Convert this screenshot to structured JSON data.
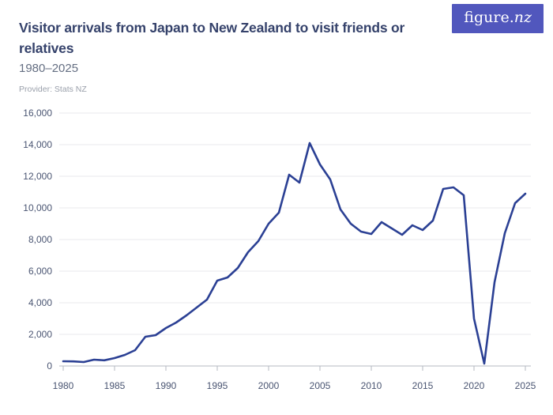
{
  "header": {
    "logo": {
      "main": "figure.",
      "suffix": "nz"
    },
    "title": "Visitor arrivals from Japan to New Zealand to visit friends or relatives",
    "subtitle": "1980–2025",
    "provider": "Provider: Stats NZ"
  },
  "colors": {
    "title_text": "#35426b",
    "subtitle_text": "#646e82",
    "provider_text": "#9aa0ab",
    "logo_background": "#5157bd",
    "logo_text": "#ffffff",
    "line": "#2b4094",
    "gridline": "#e8e8ec",
    "axis": "#b4b8c2",
    "tick_label": "#4a5572"
  },
  "chart_data": {
    "type": "line",
    "title": "Visitor arrivals from Japan to New Zealand to visit friends or relatives",
    "xlabel": "",
    "ylabel": "",
    "xlim": [
      1980,
      2025
    ],
    "ylim": [
      0,
      16000
    ],
    "grid": true,
    "legend": false,
    "x": [
      1980,
      1981,
      1982,
      1983,
      1984,
      1985,
      1986,
      1987,
      1988,
      1989,
      1990,
      1991,
      1992,
      1993,
      1994,
      1995,
      1996,
      1997,
      1998,
      1999,
      2000,
      2001,
      2002,
      2003,
      2004,
      2005,
      2006,
      2007,
      2008,
      2009,
      2010,
      2011,
      2012,
      2013,
      2014,
      2015,
      2016,
      2017,
      2018,
      2019,
      2020,
      2021,
      2022,
      2023,
      2024,
      2025
    ],
    "values": [
      300,
      290,
      250,
      400,
      360,
      500,
      700,
      1000,
      1850,
      1950,
      2400,
      2750,
      3200,
      3700,
      4200,
      5400,
      5600,
      6200,
      7200,
      7900,
      9000,
      9700,
      12100,
      11600,
      14100,
      12750,
      11800,
      9900,
      9000,
      8500,
      8350,
      9100,
      8700,
      8300,
      8900,
      8600,
      9200,
      11200,
      11300,
      10800,
      3000,
      150,
      5300,
      8400,
      10300,
      10900
    ],
    "xticks": [
      1980,
      1985,
      1990,
      1995,
      2000,
      2005,
      2010,
      2015,
      2020,
      2025
    ],
    "xtick_labels": [
      "1980",
      "1985",
      "1990",
      "1995",
      "2000",
      "2005",
      "2010",
      "2015",
      "2020",
      "2025"
    ],
    "yticks": [
      0,
      2000,
      4000,
      6000,
      8000,
      10000,
      12000,
      14000,
      16000
    ],
    "ytick_labels": [
      "0",
      "2,000",
      "4,000",
      "6,000",
      "8,000",
      "10,000",
      "12,000",
      "14,000",
      "16,000"
    ],
    "line_color": "#2b4094",
    "grid_color": "#e8e8ec",
    "axis_color": "#b4b8c2"
  }
}
